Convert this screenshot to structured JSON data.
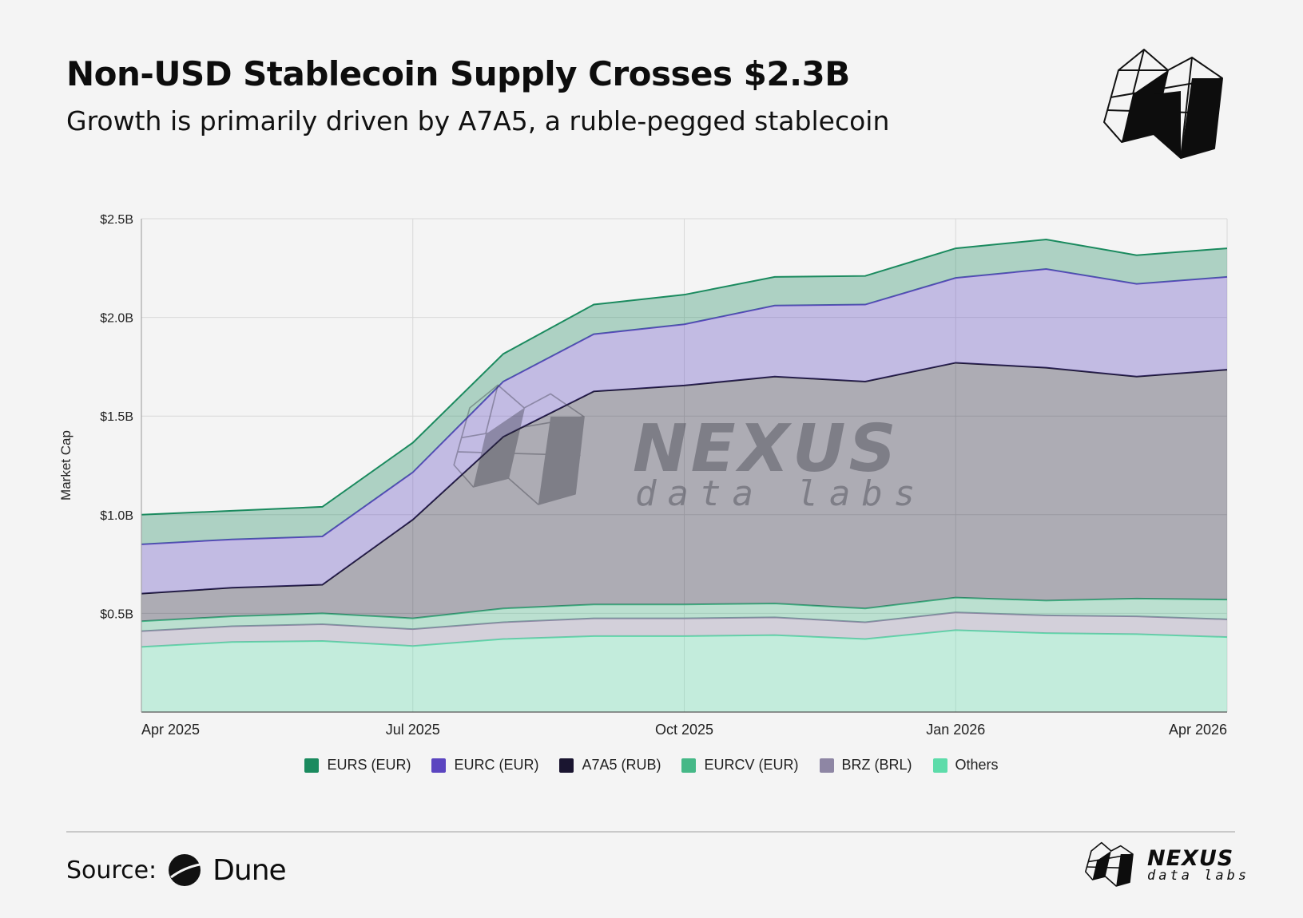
{
  "header": {
    "title": "Non-USD Stablecoin Supply Crosses $2.3B",
    "subtitle": "Growth is primarily driven by A7A5, a ruble-pegged stablecoin"
  },
  "watermark": {
    "name": "NEXUS",
    "tagline": "data labs"
  },
  "source": {
    "label": "Source:",
    "brand": "Dune"
  },
  "footer_logo": {
    "name": "NEXUS",
    "tagline": "data labs"
  },
  "colors": {
    "EURS (EUR)": "#1a8a5e",
    "EURC (EUR)": "#5b45c0",
    "A7A5 (RUB)": "#1a1530",
    "EURCV (EUR)": "#45b887",
    "BRZ (BRL)": "#8e86a4",
    "Others": "#5ddcaa"
  },
  "chart_data": {
    "type": "area",
    "stacked": true,
    "ylabel": "Market Cap",
    "xlabel": "",
    "ylim": [
      0,
      2.5
    ],
    "y_ticks": [
      {
        "value": 0.5,
        "label": "$0.5B"
      },
      {
        "value": 1.0,
        "label": "$1.0B"
      },
      {
        "value": 1.5,
        "label": "$1.5B"
      },
      {
        "value": 2.0,
        "label": "$2.0B"
      },
      {
        "value": 2.5,
        "label": "$2.5B"
      }
    ],
    "x": [
      "Apr 2025",
      "May 2025",
      "Jun 2025",
      "Jul 2025",
      "Aug 2025",
      "Sep 2025",
      "Oct 2025",
      "Nov 2025",
      "Dec 2025",
      "Jan 2026",
      "Feb 2026",
      "Mar 2026",
      "Apr 2026"
    ],
    "x_tick_labels": [
      {
        "index": 0,
        "label": "Apr 2025"
      },
      {
        "index": 3,
        "label": "Jul 2025"
      },
      {
        "index": 6,
        "label": "Oct 2025"
      },
      {
        "index": 9,
        "label": "Jan 2026"
      },
      {
        "index": 12,
        "label": "Apr 2026"
      }
    ],
    "series": [
      {
        "name": "Others",
        "values": [
          0.33,
          0.355,
          0.36,
          0.335,
          0.37,
          0.385,
          0.385,
          0.39,
          0.37,
          0.415,
          0.4,
          0.395,
          0.38
        ]
      },
      {
        "name": "BRZ (BRL)",
        "values": [
          0.08,
          0.08,
          0.085,
          0.085,
          0.085,
          0.09,
          0.09,
          0.09,
          0.085,
          0.09,
          0.09,
          0.09,
          0.09
        ]
      },
      {
        "name": "EURCV (EUR)",
        "values": [
          0.05,
          0.05,
          0.055,
          0.055,
          0.07,
          0.07,
          0.07,
          0.07,
          0.07,
          0.075,
          0.075,
          0.09,
          0.1
        ]
      },
      {
        "name": "A7A5 (RUB)",
        "values": [
          0.14,
          0.145,
          0.145,
          0.5,
          0.87,
          1.08,
          1.11,
          1.15,
          1.15,
          1.19,
          1.18,
          1.125,
          1.165
        ]
      },
      {
        "name": "EURC (EUR)",
        "values": [
          0.25,
          0.245,
          0.245,
          0.24,
          0.28,
          0.29,
          0.31,
          0.36,
          0.39,
          0.43,
          0.5,
          0.47,
          0.47
        ]
      },
      {
        "name": "EURS (EUR)",
        "values": [
          0.15,
          0.145,
          0.15,
          0.15,
          0.14,
          0.15,
          0.15,
          0.145,
          0.145,
          0.15,
          0.15,
          0.145,
          0.145
        ]
      }
    ],
    "legend_order": [
      "EURS (EUR)",
      "EURC (EUR)",
      "A7A5 (RUB)",
      "EURCV (EUR)",
      "BRZ (BRL)",
      "Others"
    ],
    "legend_position": "bottom"
  }
}
